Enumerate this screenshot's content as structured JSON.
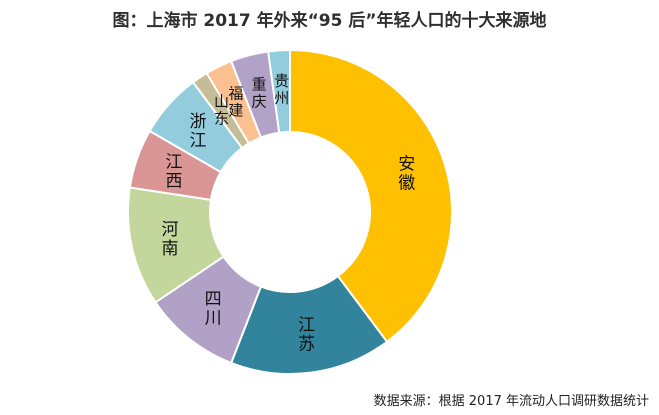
{
  "chart_data": {
    "type": "pie",
    "title": "图：上海市 2017 年外来“95 后”年轻人口的十大来源地",
    "categories": [
      "安徽",
      "江苏",
      "四川",
      "河南",
      "江西",
      "浙江",
      "山东",
      "福建",
      "重庆",
      "贵州"
    ],
    "values": [
      37,
      15,
      9,
      11,
      5.5,
      6,
      1.5,
      2.5,
      3.5,
      2
    ],
    "donut": true,
    "colors": [
      "#fec000",
      "#31849b",
      "#b2a1c7",
      "#c3d69b",
      "#d99694",
      "#93cddd",
      "#c4bd97",
      "#fac090",
      "#b3a2c7",
      "#93cddd"
    ],
    "legend": "none"
  },
  "source_note": "数据来源：根据 2017 年流动人口调研数据统计"
}
